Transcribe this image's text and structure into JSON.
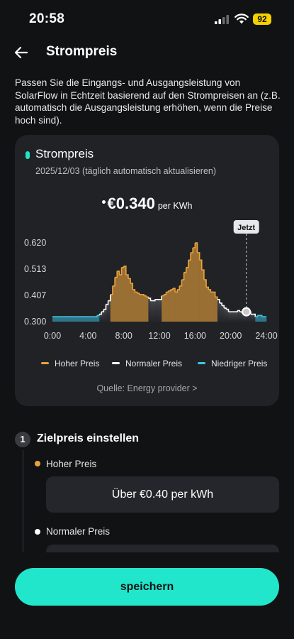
{
  "status_bar": {
    "time": "20:58",
    "battery": "92"
  },
  "header": {
    "title": "Strompreis"
  },
  "description": "Passen Sie die Eingangs- und Ausgangsleistung von SolarFlow in Echtzeit basierend auf den Strompreisen an (z.B. automatisch die Ausgangsleistung erhöhen, wenn die Preise hoch sind).",
  "card": {
    "title": "Strompreis",
    "subtitle": "2025/12/03 (täglich automatisch aktualisieren)",
    "current_price": "€0.340",
    "current_unit": "per KWh",
    "source": "Quelle: Energy provider >"
  },
  "colors": {
    "high": "#e8a33c",
    "normal": "#ffffff",
    "low": "#3ec7e6",
    "accent": "#21e6cb"
  },
  "chart_data": {
    "type": "area",
    "title": "",
    "xlabel": "",
    "ylabel": "",
    "x_ticks": [
      "0:00",
      "4:00",
      "8:00",
      "12:00",
      "16:00",
      "20:00",
      "24:00"
    ],
    "y_ticks": [
      "0.620",
      "0.513",
      "0.407",
      "0.300"
    ],
    "y_tick_values": [
      0.62,
      0.513,
      0.407,
      0.3
    ],
    "ylim": [
      0.3,
      0.62
    ],
    "xlim": [
      0,
      24
    ],
    "now_label": "Jetzt",
    "now_hour": 21.75,
    "threshold_high": 0.4,
    "threshold_low": 0.325,
    "legend": [
      {
        "key": "high",
        "label": "Hoher Preis"
      },
      {
        "key": "normal",
        "label": "Normaler Preis"
      },
      {
        "key": "low",
        "label": "Niedriger Preis"
      }
    ],
    "step_hours": [
      0,
      0.25,
      0.5,
      0.75,
      1,
      1.25,
      1.5,
      1.75,
      2,
      2.25,
      2.5,
      2.75,
      3,
      3.25,
      3.5,
      3.75,
      4,
      4.25,
      4.5,
      4.75,
      5,
      5.25,
      5.5,
      5.75,
      6,
      6.25,
      6.5,
      6.75,
      7,
      7.25,
      7.5,
      7.75,
      8,
      8.25,
      8.5,
      8.75,
      9,
      9.25,
      9.5,
      9.75,
      10,
      10.25,
      10.5,
      10.75,
      11,
      11.25,
      11.5,
      11.75,
      12,
      12.25,
      12.5,
      12.75,
      13,
      13.25,
      13.5,
      13.75,
      14,
      14.25,
      14.5,
      14.75,
      15,
      15.25,
      15.5,
      15.75,
      16,
      16.25,
      16.5,
      16.75,
      17,
      17.25,
      17.5,
      17.75,
      18,
      18.25,
      18.5,
      18.75,
      19,
      19.25,
      19.5,
      19.75,
      20,
      20.25,
      20.5,
      20.75,
      21,
      21.25,
      21.5,
      21.75,
      22,
      22.25,
      22.5,
      22.75,
      23,
      23.25,
      23.5,
      23.75
    ],
    "values": [
      0.32,
      0.32,
      0.32,
      0.32,
      0.32,
      0.32,
      0.32,
      0.32,
      0.32,
      0.32,
      0.32,
      0.32,
      0.32,
      0.32,
      0.32,
      0.32,
      0.32,
      0.32,
      0.32,
      0.32,
      0.325,
      0.33,
      0.34,
      0.35,
      0.37,
      0.385,
      0.41,
      0.445,
      0.48,
      0.505,
      0.49,
      0.52,
      0.525,
      0.49,
      0.475,
      0.455,
      0.43,
      0.42,
      0.415,
      0.41,
      0.41,
      0.405,
      0.4,
      0.395,
      0.385,
      0.385,
      0.39,
      0.39,
      0.39,
      0.405,
      0.41,
      0.42,
      0.425,
      0.43,
      0.435,
      0.42,
      0.43,
      0.445,
      0.47,
      0.5,
      0.52,
      0.55,
      0.58,
      0.6,
      0.62,
      0.58,
      0.55,
      0.51,
      0.47,
      0.44,
      0.43,
      0.42,
      0.42,
      0.4,
      0.39,
      0.375,
      0.365,
      0.355,
      0.35,
      0.34,
      0.34,
      0.34,
      0.34,
      0.345,
      0.34,
      0.335,
      0.33,
      0.34,
      0.34,
      0.33,
      0.33,
      0.32,
      0.325,
      0.325,
      0.32,
      0.32
    ]
  },
  "step": {
    "number": "1",
    "title": "Zielpreis einstellen",
    "levels": [
      {
        "label": "Hoher Preis",
        "value": "Über €0.40 per kWh"
      },
      {
        "label": "Normaler Preis",
        "value": ""
      }
    ]
  },
  "save_label": "speichern"
}
